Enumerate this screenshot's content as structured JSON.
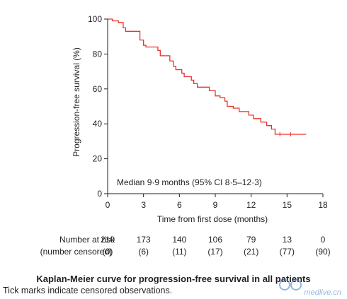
{
  "chart_data": {
    "type": "line",
    "title": "",
    "xlabel": "Time from first dose (months)",
    "ylabel": "Progression-free survival (%)",
    "xlim": [
      0,
      18
    ],
    "ylim": [
      0,
      100
    ],
    "x_ticks": [
      0,
      3,
      6,
      9,
      12,
      15,
      18
    ],
    "y_ticks": [
      0,
      20,
      40,
      60,
      80,
      100
    ],
    "grid": false,
    "series": [
      {
        "line_color": "#e8322d",
        "step": true,
        "x": [
          0,
          0.4,
          0.9,
          1.3,
          1.5,
          2.7,
          3.0,
          3.2,
          4.2,
          4.4,
          5.2,
          5.5,
          5.7,
          6.2,
          6.4,
          7.0,
          7.2,
          7.5,
          8.5,
          9.0,
          9.4,
          9.8,
          10.0,
          10.5,
          11.0,
          11.8,
          12.2,
          12.8,
          13.3,
          13.7,
          14.0,
          16.6
        ],
        "y": [
          100,
          99,
          98,
          95,
          93,
          88,
          85,
          84,
          82,
          79,
          76,
          73,
          71,
          69,
          67,
          65,
          63,
          61,
          59,
          56,
          55,
          53,
          50,
          49,
          47,
          45,
          43,
          41,
          39,
          37,
          34,
          34
        ]
      }
    ],
    "censored_marks": [
      {
        "x": 14.4,
        "y": 34
      },
      {
        "x": 15.3,
        "y": 34
      }
    ],
    "annotation": "Median 9·9 months (95% CI 8·5–12·3)",
    "risk_table": {
      "label_line1": "Number at risk",
      "label_line2": "(number censored)",
      "times": [
        0,
        3,
        6,
        9,
        12,
        15,
        18
      ],
      "at_risk": [
        "210",
        "173",
        "140",
        "106",
        "79",
        "13",
        "0"
      ],
      "censored": [
        "(0)",
        "(6)",
        "(11)",
        "(17)",
        "(21)",
        "(77)",
        "(90)"
      ]
    }
  },
  "caption": {
    "title": "Kaplan-Meier curve for progression-free survival in all patients",
    "note": "Tick marks indicate censored observations."
  },
  "watermark": {
    "text": "medlive.cn",
    "color": "#3b7fc4"
  }
}
